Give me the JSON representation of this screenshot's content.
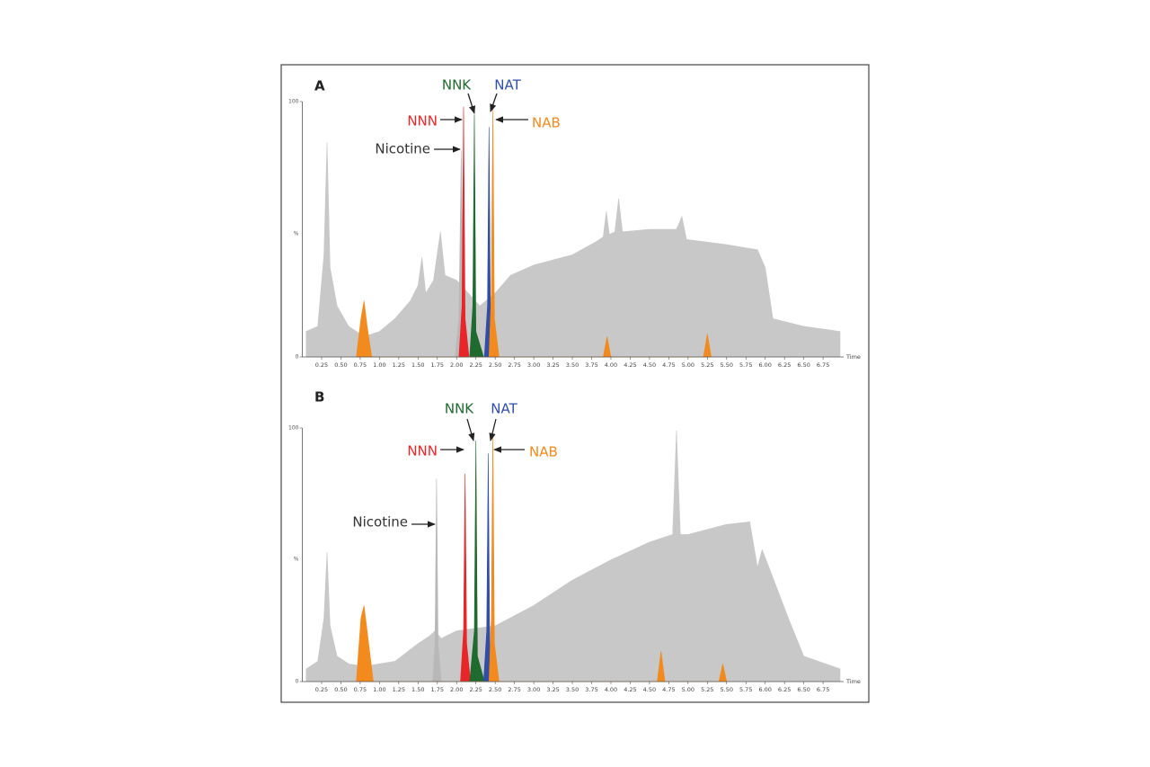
{
  "chart_data": [
    {
      "type": "area",
      "title": "A",
      "x_label": "Time",
      "y_label": "%",
      "xlim": [
        0,
        6.97
      ],
      "ylim": [
        0,
        100
      ],
      "yticks": [
        0,
        100
      ],
      "xticks": [
        0.25,
        {
          "value": 0.5,
          "label": "0.50"
        },
        0.75,
        {
          "value": 1,
          "label": "1.00"
        },
        1.25,
        {
          "value": 1.5,
          "label": "1.50"
        },
        1.75,
        {
          "value": 2,
          "label": "2.00"
        },
        2.25,
        {
          "value": 2.5,
          "label": "2.50"
        },
        2.75,
        {
          "value": 3,
          "label": "3.00"
        },
        3.25,
        {
          "value": 3.5,
          "label": "3.50"
        },
        3.75,
        {
          "value": 4,
          "label": "4.00"
        },
        4.25,
        {
          "value": 4.5,
          "label": "4.50"
        },
        4.75,
        {
          "value": 5,
          "label": "5.00"
        },
        5.25,
        {
          "value": 5.5,
          "label": "5.50"
        },
        5.75,
        {
          "value": 6,
          "label": "6.00"
        },
        6.25,
        {
          "value": 6.5,
          "label": "6.50"
        },
        6.75
      ],
      "series": [
        {
          "color": "#c8c8c8",
          "x": [
            0.05,
            0.2,
            0.28,
            0.32,
            0.36,
            0.45,
            0.6,
            0.8,
            1.0,
            1.2,
            1.4,
            1.5,
            1.55,
            1.6,
            1.7,
            1.79,
            1.85,
            2.0,
            2.3,
            2.5,
            2.7,
            3.0,
            3.5,
            3.8,
            3.9,
            3.94,
            3.98,
            4.05,
            4.1,
            4.15,
            4.5,
            4.85,
            4.92,
            4.98,
            5.5,
            5.9,
            6.0,
            6.1,
            6.5,
            6.97
          ],
          "values": [
            10,
            12,
            40,
            84,
            35,
            20,
            12,
            8,
            10,
            15,
            22,
            28,
            39,
            25,
            30,
            49,
            32,
            30,
            20,
            25,
            32,
            36,
            40,
            45,
            47,
            57,
            48,
            49,
            62,
            49,
            50,
            50,
            55,
            46,
            44,
            42,
            35,
            15,
            12,
            10
          ]
        },
        {
          "name": "Nicotine",
          "color": "#b8b8b8",
          "x": [
            1.98,
            2.03,
            2.06,
            2.09,
            2.14
          ],
          "values": [
            0,
            15,
            81,
            15,
            0
          ]
        },
        {
          "name": "NNN",
          "color": "#e8262a",
          "x": [
            2.03,
            2.07,
            2.09,
            2.11,
            2.16
          ],
          "values": [
            0,
            20,
            98,
            15,
            0
          ]
        },
        {
          "name": "NNK",
          "color": "#1f6a2e",
          "x": [
            2.17,
            2.21,
            2.23,
            2.25,
            2.35
          ],
          "values": [
            0,
            20,
            95,
            10,
            0
          ]
        },
        {
          "name": "NAT",
          "color": "#2f4ea8",
          "x": [
            2.36,
            2.4,
            2.42,
            2.44,
            2.52
          ],
          "values": [
            0,
            20,
            90,
            10,
            0
          ]
        },
        {
          "name": "NAB",
          "color": "#f28a1e",
          "x": [
            0.7,
            0.76,
            0.8,
            0.84,
            0.9,
            2.42,
            2.45,
            2.47,
            2.49,
            2.55,
            3.9,
            3.95,
            4.0,
            5.2,
            5.25,
            5.3
          ],
          "values": [
            0,
            15,
            22,
            12,
            0,
            0,
            25,
            98,
            15,
            0,
            0,
            8,
            0,
            0,
            9,
            0
          ]
        }
      ]
    },
    {
      "type": "area",
      "title": "B",
      "x_label": "Time",
      "y_label": "%",
      "xlim": [
        0,
        6.97
      ],
      "ylim": [
        0,
        100
      ],
      "yticks": [
        0,
        100
      ],
      "xticks": [
        0.25,
        {
          "value": 0.5,
          "label": "0.50"
        },
        0.75,
        {
          "value": 1,
          "label": "1.00"
        },
        1.25,
        {
          "value": 1.5,
          "label": "1.50"
        },
        1.75,
        {
          "value": 2,
          "label": "2.00"
        },
        2.25,
        {
          "value": 2.5,
          "label": "2.50"
        },
        2.75,
        {
          "value": 3,
          "label": "3.00"
        },
        3.25,
        {
          "value": 3.5,
          "label": "3.50"
        },
        3.75,
        {
          "value": 4,
          "label": "4.00"
        },
        4.25,
        {
          "value": 4.5,
          "label": "4.50"
        },
        4.75,
        {
          "value": 5,
          "label": "5.00"
        },
        5.25,
        {
          "value": 5.5,
          "label": "5.50"
        },
        5.75,
        {
          "value": 6,
          "label": "6.00"
        },
        6.25,
        {
          "value": 6.5,
          "label": "6.50"
        },
        6.75
      ],
      "series": [
        {
          "color": "#c8c8c8",
          "x": [
            0.05,
            0.2,
            0.28,
            0.32,
            0.36,
            0.45,
            0.6,
            0.8,
            1.2,
            1.5,
            1.65,
            1.72,
            1.8,
            2.0,
            2.5,
            3.0,
            3.5,
            4.0,
            4.5,
            4.8,
            4.85,
            4.9,
            5.0,
            5.5,
            5.8,
            5.9,
            5.96,
            6.05,
            6.3,
            6.5,
            6.97
          ],
          "values": [
            5,
            8,
            25,
            51,
            22,
            10,
            7,
            6,
            8,
            15,
            18,
            20,
            17,
            20,
            22,
            30,
            40,
            48,
            55,
            58,
            99,
            58,
            58,
            62,
            63,
            45,
            52,
            45,
            25,
            10,
            5
          ]
        },
        {
          "name": "Nicotine",
          "color": "#b8b8b8",
          "x": [
            1.69,
            1.72,
            1.74,
            1.76,
            1.8
          ],
          "values": [
            0,
            15,
            80,
            15,
            0
          ]
        },
        {
          "name": "NNN",
          "color": "#e8262a",
          "x": [
            2.05,
            2.09,
            2.11,
            2.13,
            2.18
          ],
          "values": [
            0,
            20,
            82,
            15,
            0
          ]
        },
        {
          "name": "NNK",
          "color": "#1f6a2e",
          "x": [
            2.17,
            2.23,
            2.25,
            2.27,
            2.36
          ],
          "values": [
            0,
            20,
            95,
            10,
            0
          ]
        },
        {
          "name": "NAT",
          "color": "#2f4ea8",
          "x": [
            2.35,
            2.39,
            2.41,
            2.43,
            2.5
          ],
          "values": [
            0,
            20,
            90,
            10,
            0
          ]
        },
        {
          "name": "NAB",
          "color": "#f28a1e",
          "x": [
            0.7,
            0.76,
            0.8,
            0.84,
            0.92,
            2.42,
            2.45,
            2.47,
            2.49,
            2.55,
            4.6,
            4.65,
            4.7,
            5.4,
            5.45,
            5.5
          ],
          "values": [
            0,
            25,
            30,
            20,
            0,
            0,
            25,
            98,
            15,
            0,
            0,
            12,
            0,
            0,
            7,
            0
          ]
        }
      ]
    }
  ]
}
